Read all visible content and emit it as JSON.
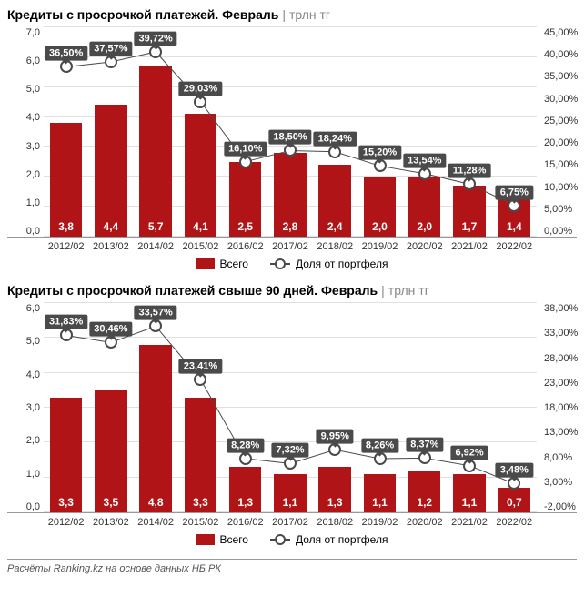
{
  "panels": [
    {
      "title": "Кредиты с просрочкой платежей. Февраль",
      "unit": "трлн тг",
      "y_left": {
        "min": 0,
        "max": 7,
        "step": 1,
        "decimals": 1
      },
      "y_right": {
        "min": 0,
        "max": 45,
        "step": 5,
        "decimals": 2,
        "suffix": "%"
      },
      "categories": [
        "2012/02",
        "2013/02",
        "2014/02",
        "2015/02",
        "2016/02",
        "2017/02",
        "2018/02",
        "2019/02",
        "2020/02",
        "2021/02",
        "2022/02"
      ],
      "bars": [
        3.8,
        4.4,
        5.7,
        4.1,
        2.5,
        2.8,
        2.4,
        2.0,
        2.0,
        1.7,
        1.4
      ],
      "bar_labels": [
        "3,8",
        "4,4",
        "5,7",
        "4,1",
        "2,5",
        "2,8",
        "2,4",
        "2,0",
        "2,0",
        "1,7",
        "1,4"
      ],
      "line": [
        36.5,
        37.57,
        39.72,
        29.03,
        16.1,
        18.5,
        18.24,
        15.2,
        13.54,
        11.28,
        6.75
      ],
      "line_labels": [
        "36,50%",
        "37,57%",
        "39,72%",
        "29,03%",
        "16,10%",
        "18,50%",
        "18,24%",
        "15,20%",
        "13,54%",
        "11,28%",
        "6,75%"
      ]
    },
    {
      "title": "Кредиты с просрочкой платежей свыше 90 дней. Февраль",
      "unit": "трлн тг",
      "y_left": {
        "min": 0,
        "max": 6,
        "step": 1,
        "decimals": 1
      },
      "y_right": {
        "min": -2,
        "max": 38,
        "step": 5,
        "decimals": 2,
        "suffix": "%"
      },
      "categories": [
        "2012/02",
        "2013/02",
        "2014/02",
        "2015/02",
        "2016/02",
        "2017/02",
        "2018/02",
        "2019/02",
        "2020/02",
        "2021/02",
        "2022/02"
      ],
      "bars": [
        3.3,
        3.5,
        4.8,
        3.3,
        1.3,
        1.1,
        1.3,
        1.1,
        1.2,
        1.1,
        0.7
      ],
      "bar_labels": [
        "3,3",
        "3,5",
        "4,8",
        "3,3",
        "1,3",
        "1,1",
        "1,3",
        "1,1",
        "1,2",
        "1,1",
        "0,7"
      ],
      "line": [
        31.83,
        30.46,
        33.57,
        23.41,
        8.28,
        7.32,
        9.95,
        8.26,
        8.37,
        6.92,
        3.48
      ],
      "line_labels": [
        "31,83%",
        "30,46%",
        "33,57%",
        "23,41%",
        "8,28%",
        "7,32%",
        "9,95%",
        "8,26%",
        "8,37%",
        "6,92%",
        "3,48%"
      ]
    }
  ],
  "legend": {
    "bar": "Всего",
    "line": "Доля от портфеля"
  },
  "colors": {
    "bar": "#b01417",
    "line": "#4a4a4a",
    "marker_fill": "#ffffff",
    "grid": "#e0e0e0",
    "label_bg": "#4a4a4a"
  },
  "footer": "Расчёты Ranking.kz на основе данных НБ РК"
}
